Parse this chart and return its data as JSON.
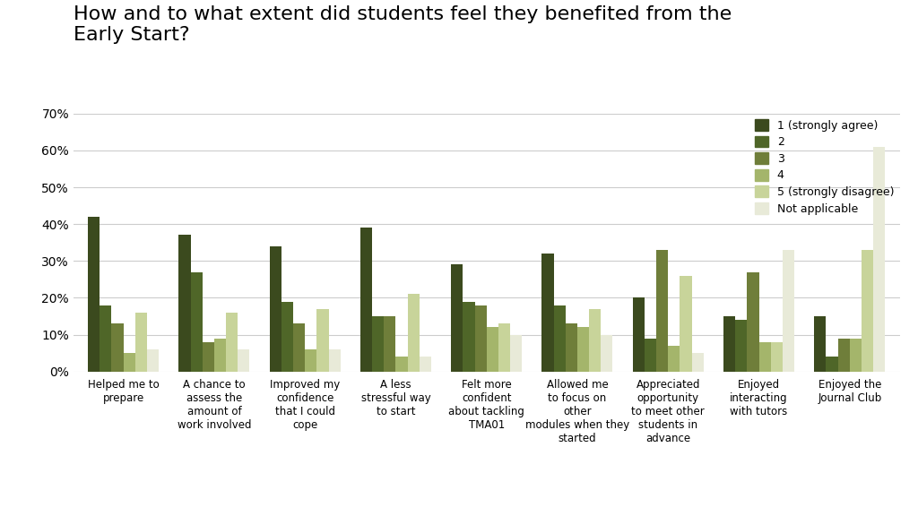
{
  "title": "How and to what extent did students feel they benefited from the\nEarly Start?",
  "categories": [
    "Helped me to\nprepare",
    "A chance to\nassess the\namount of\nwork involved",
    "Improved my\nconfidence\nthat I could\ncope",
    "A less\nstressful way\nto start",
    "Felt more\nconfident\nabout tackling\nTMA01",
    "Allowed me\nto focus on\nother\nmodules when they\nstarted",
    "Appreciated\nopportunity\nto meet other\nstudents in\nadvance",
    "Enjoyed\ninteracting\nwith tutors",
    "Enjoyed the\nJournal Club"
  ],
  "series": {
    "1 (strongly agree)": [
      42,
      37,
      34,
      39,
      29,
      32,
      20,
      15,
      15
    ],
    "2": [
      18,
      27,
      19,
      15,
      19,
      18,
      9,
      14,
      4
    ],
    "3": [
      13,
      8,
      13,
      15,
      18,
      13,
      33,
      27,
      9
    ],
    "4": [
      5,
      9,
      6,
      4,
      12,
      12,
      7,
      8,
      9
    ],
    "5 (strongly disagree)": [
      16,
      16,
      17,
      21,
      13,
      17,
      26,
      8,
      33
    ],
    "Not applicable": [
      6,
      6,
      6,
      4,
      10,
      10,
      5,
      33,
      61
    ]
  },
  "colors": {
    "1 (strongly agree)": "#3b4a1e",
    "2": "#4f6628",
    "3": "#6f7e3a",
    "4": "#a4b56b",
    "5 (strongly disagree)": "#c8d49a",
    "Not applicable": "#e8ead8"
  },
  "ylim": [
    0,
    70
  ],
  "yticks": [
    0,
    10,
    20,
    30,
    40,
    50,
    60,
    70
  ],
  "ytick_labels": [
    "0%",
    "10%",
    "20%",
    "30%",
    "40%",
    "50%",
    "60%",
    "70%"
  ],
  "background_color": "#ffffff",
  "grid_color": "#cccccc",
  "title_fontsize": 16,
  "legend_fontsize": 9,
  "bar_width": 0.13
}
